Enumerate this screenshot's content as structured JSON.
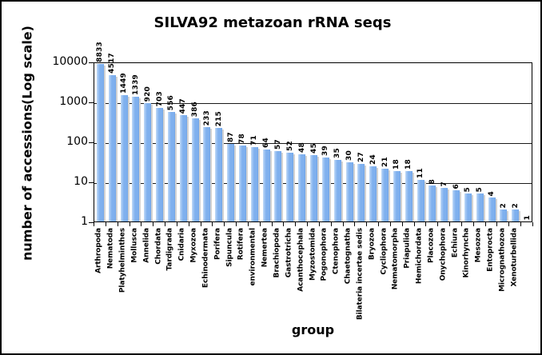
{
  "figure": {
    "title": "SILVA92 metazoan rRNA seqs",
    "y_axis_title_line1": "number of accessions",
    "y_axis_title_line2": "(Log scale)",
    "x_axis_title": "group"
  },
  "colors": {
    "bar": "#7fb0ee",
    "bar_highlight": "#c3dcf8",
    "bar_shadow": "#d2d2d2",
    "axis": "#000000",
    "gridline": "#1a1a1a",
    "text": "#000000",
    "background": "#ffffff"
  },
  "chart_data": {
    "type": "bar",
    "title": "SILVA92 metazoan rRNA seqs",
    "xlabel": "group",
    "ylabel": "number of accessions (Log scale)",
    "y_scale": "log",
    "ylim": [
      1,
      10000
    ],
    "yticks": [
      1,
      10,
      100,
      1000,
      10000
    ],
    "grid": true,
    "legend": false,
    "bar_value_labels_rotated": true,
    "categories": [
      "Arthropoda",
      "Nematoda",
      "Platyhelminthes",
      "Mollusca",
      "Annelida",
      "Chordata",
      "Tardigrada",
      "Cnidaria",
      "Myxozoa",
      "Echinodermata",
      "Porifera",
      "Sipuncula",
      "Rotifera",
      "environmental",
      "Nemertea",
      "Brachiopoda",
      "Gastrotricha",
      "Acanthocephala",
      "Myzostomida",
      "Pogonophora",
      "Ctenophora",
      "Chaetognatha",
      "Bilateria incertae sedis",
      "Bryozoa",
      "Cycliophora",
      "Nematomorpha",
      "Priapulida",
      "Hemichordata",
      "Placozoa",
      "Onychophora",
      "Echiura",
      "Kinorhyncha",
      "Mesozoa",
      "Entoprocta",
      "Micrognathozoa",
      "Xenoturbellida",
      ""
    ],
    "values": [
      8833,
      4517,
      1449,
      1339,
      920,
      703,
      556,
      447,
      386,
      233,
      215,
      87,
      78,
      71,
      64,
      57,
      52,
      48,
      45,
      39,
      35,
      30,
      27,
      24,
      21,
      18,
      18,
      11,
      8,
      7,
      6,
      5,
      5,
      4,
      2,
      2,
      1
    ]
  }
}
